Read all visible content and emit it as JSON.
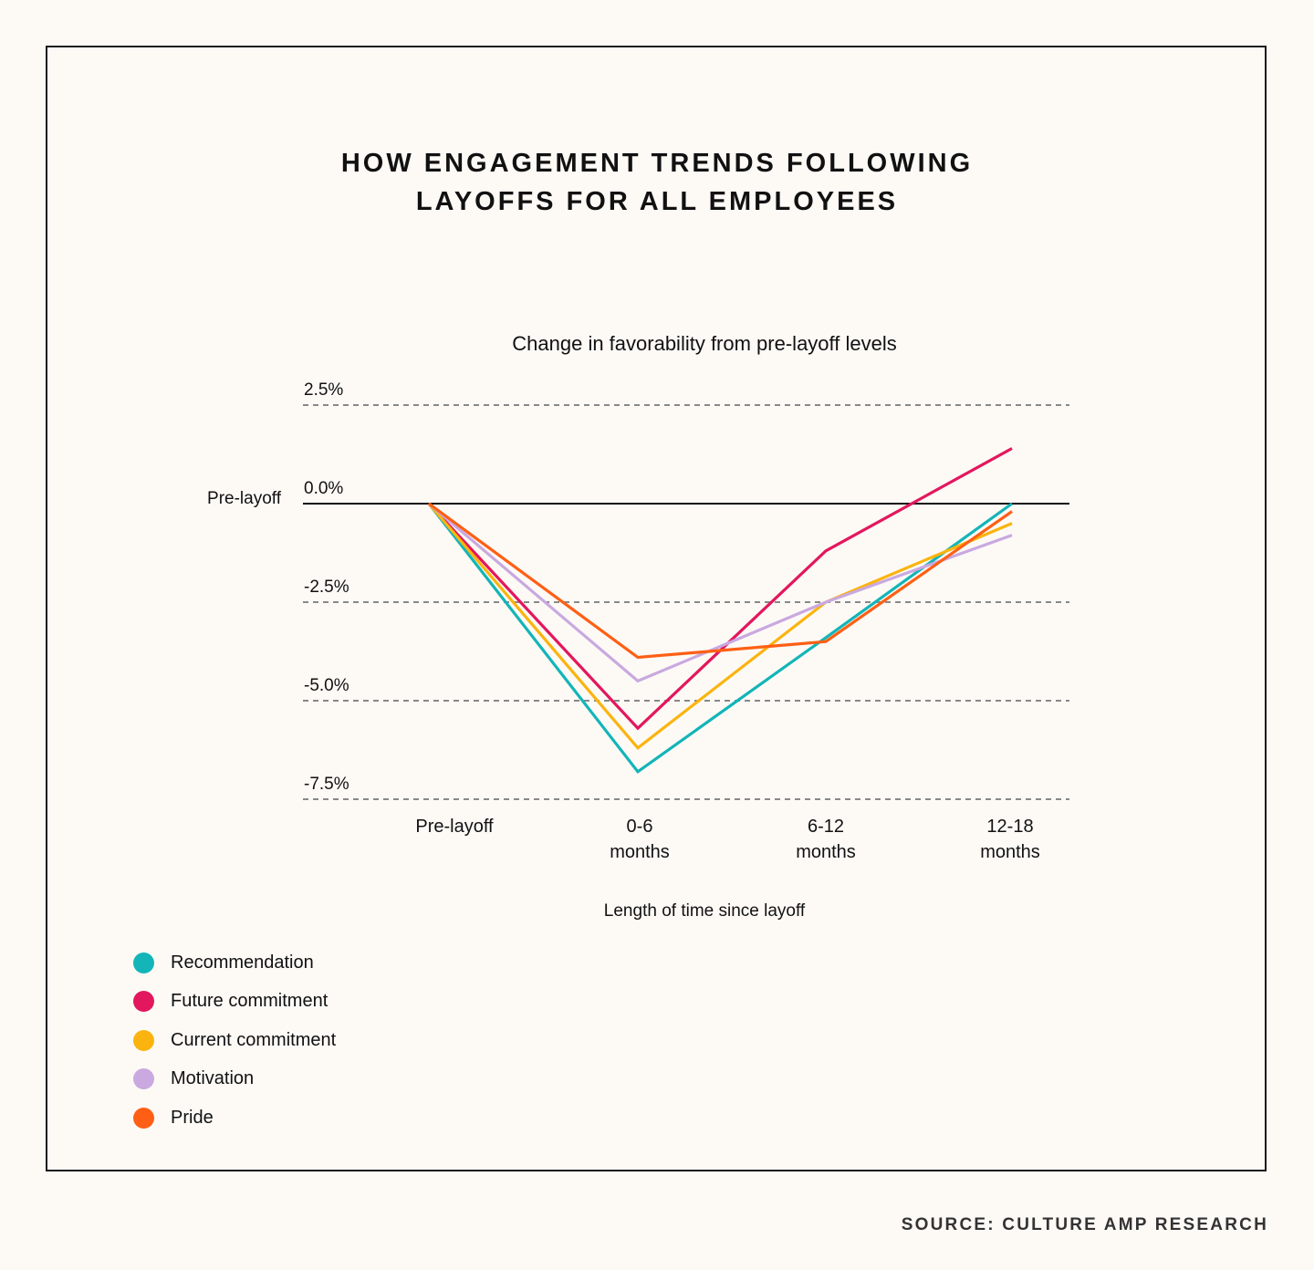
{
  "title_lines": [
    "HOW ENGAGEMENT TRENDS FOLLOWING",
    "LAYOFFS FOR ALL EMPLOYEES"
  ],
  "source": "SOURCE: CULTURE AMP RESEARCH",
  "colors": {
    "background": "#fdfaf6",
    "zero_line": "#111111",
    "grid": "#888888"
  },
  "chart_data": {
    "type": "line",
    "title": "Change in favorability from pre-layoff levels",
    "xlabel": "Length of time since layoff",
    "ylabel": "",
    "zero_line_label": "Pre-layoff",
    "categories": [
      "Pre-layoff",
      "0-6 months",
      "6-12 months",
      "12-18 months"
    ],
    "category_lines": [
      [
        "Pre-layoff"
      ],
      [
        "0-6",
        "months"
      ],
      [
        "6-12",
        "months"
      ],
      [
        "12-18",
        "months"
      ]
    ],
    "y_ticks": [
      2.5,
      0,
      -2.5,
      -5,
      -7.5
    ],
    "y_tick_labels": [
      "2.5%",
      "0.0%",
      "-2.5%",
      "-5.0%",
      "-7.5%"
    ],
    "ylim": [
      -7.5,
      2.5
    ],
    "grid": "dashed horizontal",
    "legend_position": "bottom-left",
    "series": [
      {
        "name": "Recommendation",
        "color": "#13b5b8",
        "values": [
          0,
          -6.8,
          -3.4,
          0
        ]
      },
      {
        "name": "Future commitment",
        "color": "#e3175d",
        "values": [
          0,
          -5.7,
          -1.2,
          1.4
        ]
      },
      {
        "name": "Current commitment",
        "color": "#fbb40f",
        "values": [
          0,
          -6.2,
          -2.5,
          -0.5
        ]
      },
      {
        "name": "Motivation",
        "color": "#c9a9e0",
        "values": [
          0,
          -4.5,
          -2.5,
          -0.8
        ]
      },
      {
        "name": "Pride",
        "color": "#ff5f14",
        "values": [
          0,
          -3.9,
          -3.5,
          -0.2
        ]
      }
    ]
  }
}
